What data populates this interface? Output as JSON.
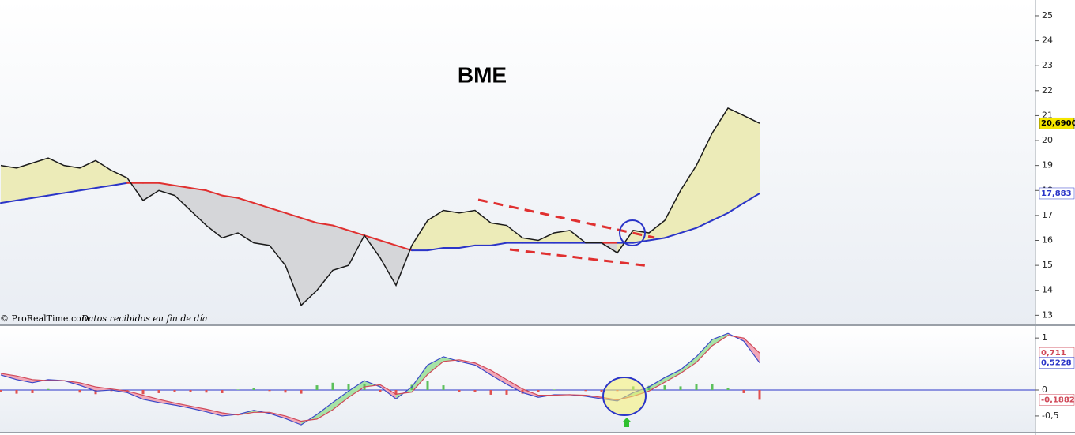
{
  "chart_data": [
    {
      "type": "line",
      "title": "BME",
      "source": "© ProRealTime.com",
      "note": "Datos recibidos en fin de día",
      "ylim": [
        12.6,
        25.6
      ],
      "yticks": [
        13,
        14,
        15,
        16,
        17,
        18,
        19,
        20,
        21,
        22,
        23,
        24,
        25
      ],
      "fill_above": "#ecebb8",
      "fill_below": "#d5d6d9",
      "series": [
        {
          "color": "#1a1a1a",
          "values": [
            19.0,
            18.9,
            19.1,
            19.3,
            19.0,
            18.9,
            19.2,
            18.8,
            18.5,
            17.6,
            18.0,
            17.8,
            17.2,
            16.6,
            16.1,
            16.3,
            15.9,
            15.8,
            15.0,
            13.4,
            14.0,
            14.8,
            15.0,
            16.2,
            15.3,
            14.2,
            15.8,
            16.8,
            17.2,
            17.1,
            17.2,
            16.7,
            16.6,
            16.1,
            16.0,
            16.3,
            16.4,
            15.9,
            15.9,
            15.5,
            16.4,
            16.3,
            16.8,
            18.0,
            19.0,
            20.3,
            21.3,
            21.0,
            20.69
          ]
        },
        {
          "color": "#2b35c8",
          "below_color": "#e03030",
          "values": [
            17.5,
            17.6,
            17.7,
            17.8,
            17.9,
            18.0,
            18.1,
            18.2,
            18.3,
            18.3,
            18.3,
            18.2,
            18.1,
            18.0,
            17.8,
            17.7,
            17.5,
            17.3,
            17.1,
            16.9,
            16.7,
            16.6,
            16.4,
            16.2,
            16.0,
            15.8,
            15.6,
            15.6,
            15.7,
            15.7,
            15.8,
            15.8,
            15.9,
            15.9,
            15.9,
            15.9,
            15.9,
            15.9,
            15.9,
            15.9,
            15.9,
            16.0,
            16.1,
            16.3,
            16.5,
            16.8,
            17.1,
            17.5,
            17.883
          ]
        }
      ],
      "last_labels": [
        {
          "value": 20.69,
          "label": "20,6900",
          "color": "#000000",
          "background": "#f5e600"
        },
        {
          "value": 17.883,
          "label": "17,883",
          "color": "#2b35c8",
          "background": "#ffffff"
        }
      ]
    },
    {
      "type": "macd",
      "ylim": [
        -0.82,
        1.23
      ],
      "yticks": [
        1,
        0,
        {
          "value": -0.5,
          "label": "-0,5"
        }
      ],
      "zero_line_color": "#2b35c8",
      "fill_above": "#a6e3a6",
      "fill_below": "#f2a8b8",
      "series": [
        {
          "color": "#3a48c8",
          "values": [
            0.29,
            0.2,
            0.14,
            0.2,
            0.18,
            0.09,
            -0.02,
            0,
            -0.05,
            -0.18,
            -0.24,
            -0.29,
            -0.35,
            -0.42,
            -0.5,
            -0.47,
            -0.39,
            -0.45,
            -0.55,
            -0.67,
            -0.47,
            -0.24,
            -0.02,
            0.18,
            0.06,
            -0.17,
            0.06,
            0.48,
            0.64,
            0.55,
            0.48,
            0.29,
            0.11,
            -0.05,
            -0.14,
            -0.09,
            -0.09,
            -0.12,
            -0.17,
            -0.21,
            -0.05,
            0.06,
            0.24,
            0.39,
            0.64,
            0.97,
            1.09,
            0.94,
            0.5228
          ]
        },
        {
          "color": "#d04858",
          "values": [
            0.32,
            0.27,
            0.2,
            0.18,
            0.18,
            0.14,
            0.06,
            0.02,
            -0.02,
            -0.1,
            -0.18,
            -0.25,
            -0.31,
            -0.37,
            -0.44,
            -0.48,
            -0.43,
            -0.43,
            -0.5,
            -0.6,
            -0.56,
            -0.38,
            -0.14,
            0.06,
            0.1,
            -0.08,
            -0.04,
            0.3,
            0.55,
            0.58,
            0.52,
            0.38,
            0.2,
            0.02,
            -0.1,
            -0.1,
            -0.09,
            -0.1,
            -0.14,
            -0.19,
            -0.12,
            -0.02,
            0.15,
            0.32,
            0.53,
            0.85,
            1.05,
            1.0,
            0.711
          ]
        }
      ],
      "histogram": {
        "positive_color": "#5cc05c",
        "negative_color": "#e05050",
        "values": [
          -0.03,
          -0.07,
          -0.06,
          0.02,
          0,
          -0.05,
          -0.08,
          -0.02,
          -0.03,
          -0.08,
          -0.06,
          -0.04,
          -0.04,
          -0.05,
          -0.06,
          0.01,
          0.04,
          -0.02,
          -0.05,
          -0.07,
          0.09,
          0.14,
          0.12,
          0.12,
          -0.04,
          -0.09,
          0.1,
          0.18,
          0.09,
          -0.03,
          -0.04,
          -0.09,
          -0.09,
          -0.07,
          -0.04,
          0.01,
          0,
          -0.02,
          -0.03,
          -0.02,
          0.07,
          0.08,
          0.09,
          0.07,
          0.11,
          0.12,
          0.04,
          -0.06,
          -0.1882
        ]
      },
      "last_labels": [
        {
          "value": 0.711,
          "label": "0,711",
          "color": "#d04858",
          "background": "#ffffff"
        },
        {
          "value": 0.5228,
          "label": "0,5228",
          "color": "#2b35c8",
          "background": "#ffffff"
        },
        {
          "value": -0.1882,
          "label": "-0,1882",
          "color": "#d04858",
          "background": "#ffffff"
        }
      ]
    }
  ]
}
